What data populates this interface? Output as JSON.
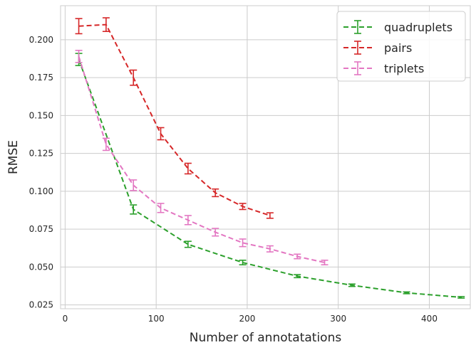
{
  "chart_data": {
    "type": "line",
    "title": "",
    "xlabel": "Number of annotatations",
    "ylabel": "RMSE",
    "xlim": [
      -5,
      445
    ],
    "ylim": [
      0.0225,
      0.2225
    ],
    "xticks": [
      0,
      100,
      200,
      300,
      400
    ],
    "yticks": [
      0.025,
      0.05,
      0.075,
      0.1,
      0.125,
      0.15,
      0.175,
      0.2
    ],
    "ytick_labels": [
      "0.025",
      "0.050",
      "0.075",
      "0.100",
      "0.125",
      "0.150",
      "0.175",
      "0.200"
    ],
    "grid": true,
    "legend_position": "top-right",
    "series": [
      {
        "name": "quadruplets",
        "color": "#2ca02c",
        "x": [
          15,
          75,
          135,
          195,
          255,
          315,
          375,
          435
        ],
        "y": [
          0.187,
          0.088,
          0.065,
          0.053,
          0.044,
          0.038,
          0.033,
          0.03
        ],
        "err": [
          0.004,
          0.003,
          0.002,
          0.0015,
          0.001,
          0.0008,
          0.0006,
          0.0005
        ]
      },
      {
        "name": "pairs",
        "color": "#d62728",
        "x": [
          15,
          45,
          75,
          105,
          135,
          165,
          195,
          225
        ],
        "y": [
          0.209,
          0.21,
          0.175,
          0.138,
          0.115,
          0.099,
          0.09,
          0.084
        ],
        "err": [
          0.005,
          0.0045,
          0.005,
          0.004,
          0.0035,
          0.0025,
          0.002,
          0.0018
        ]
      },
      {
        "name": "triplets",
        "color": "#e377c2",
        "x": [
          15,
          45,
          75,
          105,
          135,
          165,
          195,
          225,
          255,
          285
        ],
        "y": [
          0.189,
          0.131,
          0.104,
          0.089,
          0.081,
          0.073,
          0.066,
          0.062,
          0.057,
          0.053
        ],
        "err": [
          0.004,
          0.004,
          0.0035,
          0.003,
          0.003,
          0.0025,
          0.0025,
          0.002,
          0.0015,
          0.0015
        ]
      }
    ]
  }
}
